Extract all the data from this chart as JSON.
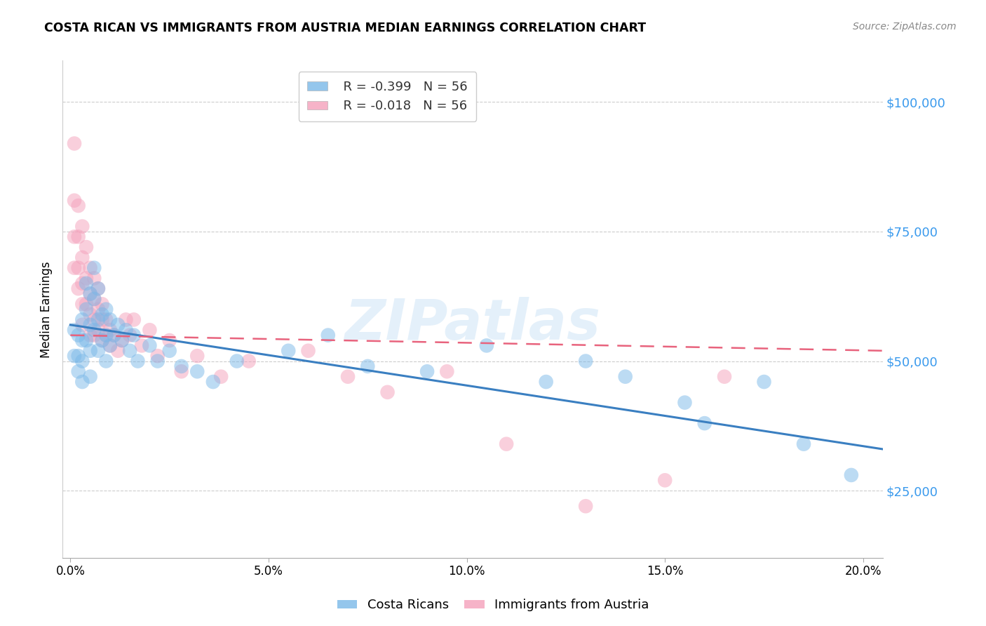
{
  "title": "COSTA RICAN VS IMMIGRANTS FROM AUSTRIA MEDIAN EARNINGS CORRELATION CHART",
  "source": "Source: ZipAtlas.com",
  "ylabel": "Median Earnings",
  "xlabel_ticks": [
    "0.0%",
    "5.0%",
    "10.0%",
    "15.0%",
    "20.0%"
  ],
  "xlabel_vals": [
    0.0,
    0.05,
    0.1,
    0.15,
    0.2
  ],
  "ytick_vals": [
    25000,
    50000,
    75000,
    100000
  ],
  "ytick_labels": [
    "$25,000",
    "$50,000",
    "$75,000",
    "$100,000"
  ],
  "ylim": [
    12000,
    108000
  ],
  "xlim": [
    -0.002,
    0.205
  ],
  "blue_color": "#7ab8e8",
  "pink_color": "#f4a0bb",
  "blue_line_color": "#3a7fc1",
  "pink_line_color": "#e8637d",
  "watermark": "ZIPatlas",
  "legend_blue_r": "R = -0.399",
  "legend_blue_n": "N = 56",
  "legend_pink_r": "R = -0.018",
  "legend_pink_n": "N = 56",
  "blue_scatter_x": [
    0.001,
    0.001,
    0.002,
    0.002,
    0.002,
    0.003,
    0.003,
    0.003,
    0.003,
    0.004,
    0.004,
    0.004,
    0.005,
    0.005,
    0.005,
    0.005,
    0.006,
    0.006,
    0.006,
    0.007,
    0.007,
    0.007,
    0.008,
    0.008,
    0.009,
    0.009,
    0.009,
    0.01,
    0.01,
    0.011,
    0.012,
    0.013,
    0.014,
    0.015,
    0.016,
    0.017,
    0.02,
    0.022,
    0.025,
    0.028,
    0.032,
    0.036,
    0.042,
    0.055,
    0.065,
    0.075,
    0.09,
    0.105,
    0.12,
    0.13,
    0.14,
    0.155,
    0.16,
    0.175,
    0.185,
    0.197
  ],
  "blue_scatter_y": [
    56000,
    51000,
    55000,
    51000,
    48000,
    58000,
    54000,
    50000,
    46000,
    65000,
    60000,
    54000,
    63000,
    57000,
    52000,
    47000,
    68000,
    62000,
    56000,
    64000,
    58000,
    52000,
    59000,
    54000,
    60000,
    55000,
    50000,
    58000,
    53000,
    55000,
    57000,
    54000,
    56000,
    52000,
    55000,
    50000,
    53000,
    50000,
    52000,
    49000,
    48000,
    46000,
    50000,
    52000,
    55000,
    49000,
    48000,
    53000,
    46000,
    50000,
    47000,
    42000,
    38000,
    46000,
    34000,
    28000
  ],
  "pink_scatter_x": [
    0.001,
    0.001,
    0.001,
    0.001,
    0.002,
    0.002,
    0.002,
    0.002,
    0.003,
    0.003,
    0.003,
    0.003,
    0.003,
    0.004,
    0.004,
    0.004,
    0.005,
    0.005,
    0.005,
    0.005,
    0.006,
    0.006,
    0.006,
    0.006,
    0.007,
    0.007,
    0.007,
    0.008,
    0.008,
    0.008,
    0.009,
    0.009,
    0.01,
    0.01,
    0.011,
    0.012,
    0.013,
    0.014,
    0.015,
    0.016,
    0.018,
    0.02,
    0.022,
    0.025,
    0.028,
    0.032,
    0.038,
    0.045,
    0.06,
    0.07,
    0.08,
    0.095,
    0.11,
    0.13,
    0.15,
    0.165
  ],
  "pink_scatter_y": [
    92000,
    81000,
    74000,
    68000,
    80000,
    74000,
    68000,
    64000,
    76000,
    70000,
    65000,
    61000,
    57000,
    72000,
    66000,
    61000,
    68000,
    63000,
    59000,
    55000,
    66000,
    62000,
    58000,
    55000,
    64000,
    60000,
    56000,
    61000,
    58000,
    54000,
    58000,
    55000,
    56000,
    53000,
    55000,
    52000,
    54000,
    58000,
    55000,
    58000,
    53000,
    56000,
    51000,
    54000,
    48000,
    51000,
    47000,
    50000,
    52000,
    47000,
    44000,
    48000,
    34000,
    22000,
    27000,
    47000
  ],
  "blue_line_x": [
    0.0,
    0.205
  ],
  "blue_line_y": [
    57000,
    33000
  ],
  "pink_line_x": [
    0.0,
    0.205
  ],
  "pink_line_y": [
    55000,
    52000
  ]
}
